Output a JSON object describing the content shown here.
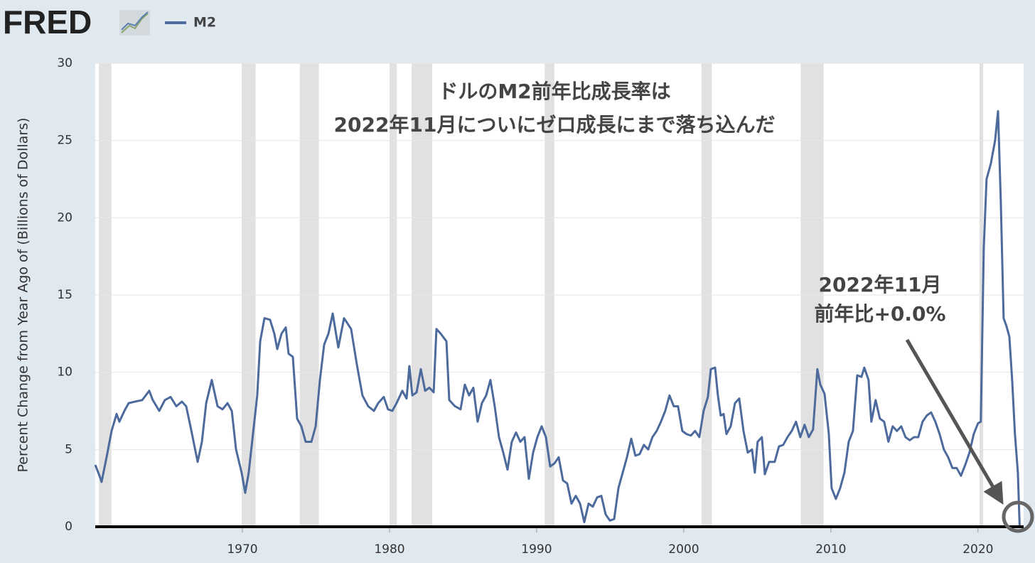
{
  "logo": "FRED",
  "chart_data": {
    "type": "line",
    "title": [
      "ドルのM2前年比成長率は",
      "2022年11月についにゼロ成長にまで落ち込んだ"
    ],
    "annotations": [
      "2022年11月",
      "前年比+0.0%"
    ],
    "y_label": "Percent Change from Year Ago of (Billions of Dollars)",
    "xlim": [
      1960,
      2023.1
    ],
    "ylim": [
      0,
      30
    ],
    "xticks": [
      1970,
      1980,
      1990,
      2000,
      2010,
      2020
    ],
    "yticks": [
      0,
      5,
      10,
      15,
      20,
      25,
      30
    ],
    "grid": true,
    "recession_color": "#e1e1e1",
    "recessions": [
      [
        1960.25,
        1961.1
      ],
      [
        1969.95,
        1970.9
      ],
      [
        1973.9,
        1975.2
      ],
      [
        1980.0,
        1980.5
      ],
      [
        1981.5,
        1982.9
      ],
      [
        1990.55,
        1991.2
      ],
      [
        2001.2,
        2001.9
      ],
      [
        2007.95,
        2009.5
      ],
      [
        2020.1,
        2020.35
      ]
    ],
    "x": [
      1960.0,
      1960.29,
      1960.43,
      1960.77,
      1961.11,
      1961.45,
      1961.64,
      1961.98,
      1962.27,
      1962.71,
      1963.19,
      1963.67,
      1963.91,
      1964.35,
      1964.73,
      1965.12,
      1965.51,
      1965.89,
      1966.18,
      1966.47,
      1966.96,
      1967.25,
      1967.54,
      1967.92,
      1968.31,
      1968.65,
      1968.99,
      1969.28,
      1969.57,
      1969.95,
      1970.19,
      1970.43,
      1970.72,
      1971.01,
      1971.21,
      1971.5,
      1971.88,
      1972.17,
      1972.37,
      1972.66,
      1972.95,
      1973.14,
      1973.43,
      1973.72,
      1974.01,
      1974.3,
      1974.69,
      1974.98,
      1975.27,
      1975.56,
      1975.85,
      1976.14,
      1976.52,
      1976.91,
      1977.39,
      1977.78,
      1978.16,
      1978.55,
      1978.94,
      1979.23,
      1979.61,
      1979.9,
      1980.19,
      1980.48,
      1980.87,
      1981.16,
      1981.35,
      1981.55,
      1981.84,
      1982.13,
      1982.42,
      1982.71,
      1983.0,
      1983.19,
      1983.48,
      1983.87,
      1984.06,
      1984.45,
      1984.83,
      1985.12,
      1985.41,
      1985.7,
      1985.99,
      1986.28,
      1986.57,
      1986.86,
      1987.15,
      1987.44,
      1987.73,
      1988.02,
      1988.31,
      1988.6,
      1988.89,
      1989.18,
      1989.47,
      1989.76,
      1990.05,
      1990.34,
      1990.63,
      1990.92,
      1991.21,
      1991.5,
      1991.79,
      1992.08,
      1992.37,
      1992.66,
      1992.95,
      1993.24,
      1993.53,
      1993.82,
      1994.11,
      1994.4,
      1994.69,
      1994.98,
      1995.27,
      1995.56,
      1995.85,
      1996.14,
      1996.43,
      1996.71,
      1997.0,
      1997.29,
      1997.58,
      1997.87,
      1998.16,
      1998.45,
      1998.74,
      1999.03,
      1999.32,
      1999.61,
      1999.9,
      2000.19,
      2000.48,
      2000.77,
      2001.06,
      2001.35,
      2001.64,
      2001.84,
      2002.13,
      2002.32,
      2002.51,
      2002.71,
      2002.9,
      2003.19,
      2003.48,
      2003.77,
      2004.06,
      2004.35,
      2004.64,
      2004.83,
      2005.02,
      2005.31,
      2005.51,
      2005.8,
      2006.18,
      2006.47,
      2006.76,
      2007.05,
      2007.34,
      2007.63,
      2007.92,
      2008.21,
      2008.5,
      2008.79,
      2009.08,
      2009.28,
      2009.57,
      2009.86,
      2010.05,
      2010.34,
      2010.63,
      2010.92,
      2011.21,
      2011.5,
      2011.79,
      2012.08,
      2012.27,
      2012.56,
      2012.75,
      2013.04,
      2013.33,
      2013.62,
      2013.91,
      2014.2,
      2014.49,
      2014.78,
      2015.07,
      2015.36,
      2015.65,
      2015.94,
      2016.23,
      2016.52,
      2016.81,
      2017.1,
      2017.39,
      2017.68,
      2017.97,
      2018.26,
      2018.55,
      2018.84,
      2019.13,
      2019.42,
      2019.71,
      2020.0,
      2020.19,
      2020.39,
      2020.58,
      2020.87,
      2021.16,
      2021.36,
      2021.55,
      2021.74,
      2021.93,
      2022.13,
      2022.32,
      2022.51,
      2022.71,
      2022.83
    ],
    "series": [
      {
        "name": "M2",
        "color": "#4c6a9c",
        "values": [
          4.0,
          3.3,
          2.9,
          4.5,
          6.2,
          7.3,
          6.8,
          7.5,
          8.0,
          8.1,
          8.2,
          8.8,
          8.2,
          7.5,
          8.2,
          8.4,
          7.8,
          8.1,
          7.8,
          6.5,
          4.2,
          5.5,
          8.0,
          9.5,
          7.8,
          7.6,
          8.0,
          7.5,
          5.0,
          3.5,
          2.2,
          3.5,
          6.0,
          8.5,
          12.0,
          13.5,
          13.4,
          12.5,
          11.5,
          12.5,
          12.9,
          11.2,
          11.0,
          7.0,
          6.5,
          5.5,
          5.5,
          6.5,
          9.5,
          11.8,
          12.5,
          13.8,
          11.6,
          13.5,
          12.8,
          10.5,
          8.5,
          7.8,
          7.5,
          8.0,
          8.4,
          7.6,
          7.5,
          8.0,
          8.8,
          8.3,
          10.4,
          8.5,
          8.7,
          10.2,
          8.8,
          9.0,
          8.7,
          12.8,
          12.5,
          12.0,
          8.2,
          7.8,
          7.6,
          9.2,
          8.5,
          9.0,
          6.8,
          8.0,
          8.5,
          9.5,
          7.8,
          5.8,
          4.8,
          3.7,
          5.5,
          6.1,
          5.5,
          5.8,
          3.1,
          4.8,
          5.8,
          6.5,
          5.8,
          3.9,
          4.1,
          4.5,
          3.0,
          2.8,
          1.5,
          2.0,
          1.5,
          0.3,
          1.5,
          1.3,
          1.9,
          2.0,
          0.8,
          0.4,
          0.5,
          2.5,
          3.5,
          4.5,
          5.7,
          4.6,
          4.7,
          5.3,
          5.0,
          5.8,
          6.2,
          6.8,
          7.5,
          8.5,
          7.8,
          7.8,
          6.2,
          6.0,
          5.9,
          6.2,
          5.8,
          7.5,
          8.4,
          10.2,
          10.3,
          8.5,
          7.2,
          7.3,
          6.0,
          6.5,
          8.0,
          8.3,
          6.2,
          4.8,
          5.0,
          3.5,
          5.5,
          5.8,
          3.4,
          4.2,
          4.2,
          5.2,
          5.3,
          5.8,
          6.2,
          6.8,
          5.8,
          6.6,
          5.8,
          6.3,
          10.2,
          9.2,
          8.6,
          6.0,
          2.5,
          1.8,
          2.5,
          3.5,
          5.5,
          6.2,
          9.8,
          9.7,
          10.3,
          9.5,
          6.8,
          8.2,
          7.0,
          6.8,
          5.5,
          6.5,
          6.2,
          6.5,
          5.8,
          5.6,
          5.8,
          5.8,
          6.8,
          7.2,
          7.4,
          6.8,
          6.0,
          5.0,
          4.5,
          3.8,
          3.8,
          3.3,
          4.0,
          4.8,
          6.0,
          6.7,
          6.8,
          18.0,
          22.5,
          23.5,
          25.0,
          26.9,
          21.0,
          13.5,
          13.0,
          12.3,
          9.5,
          6.0,
          3.5,
          0.0
        ]
      }
    ]
  }
}
